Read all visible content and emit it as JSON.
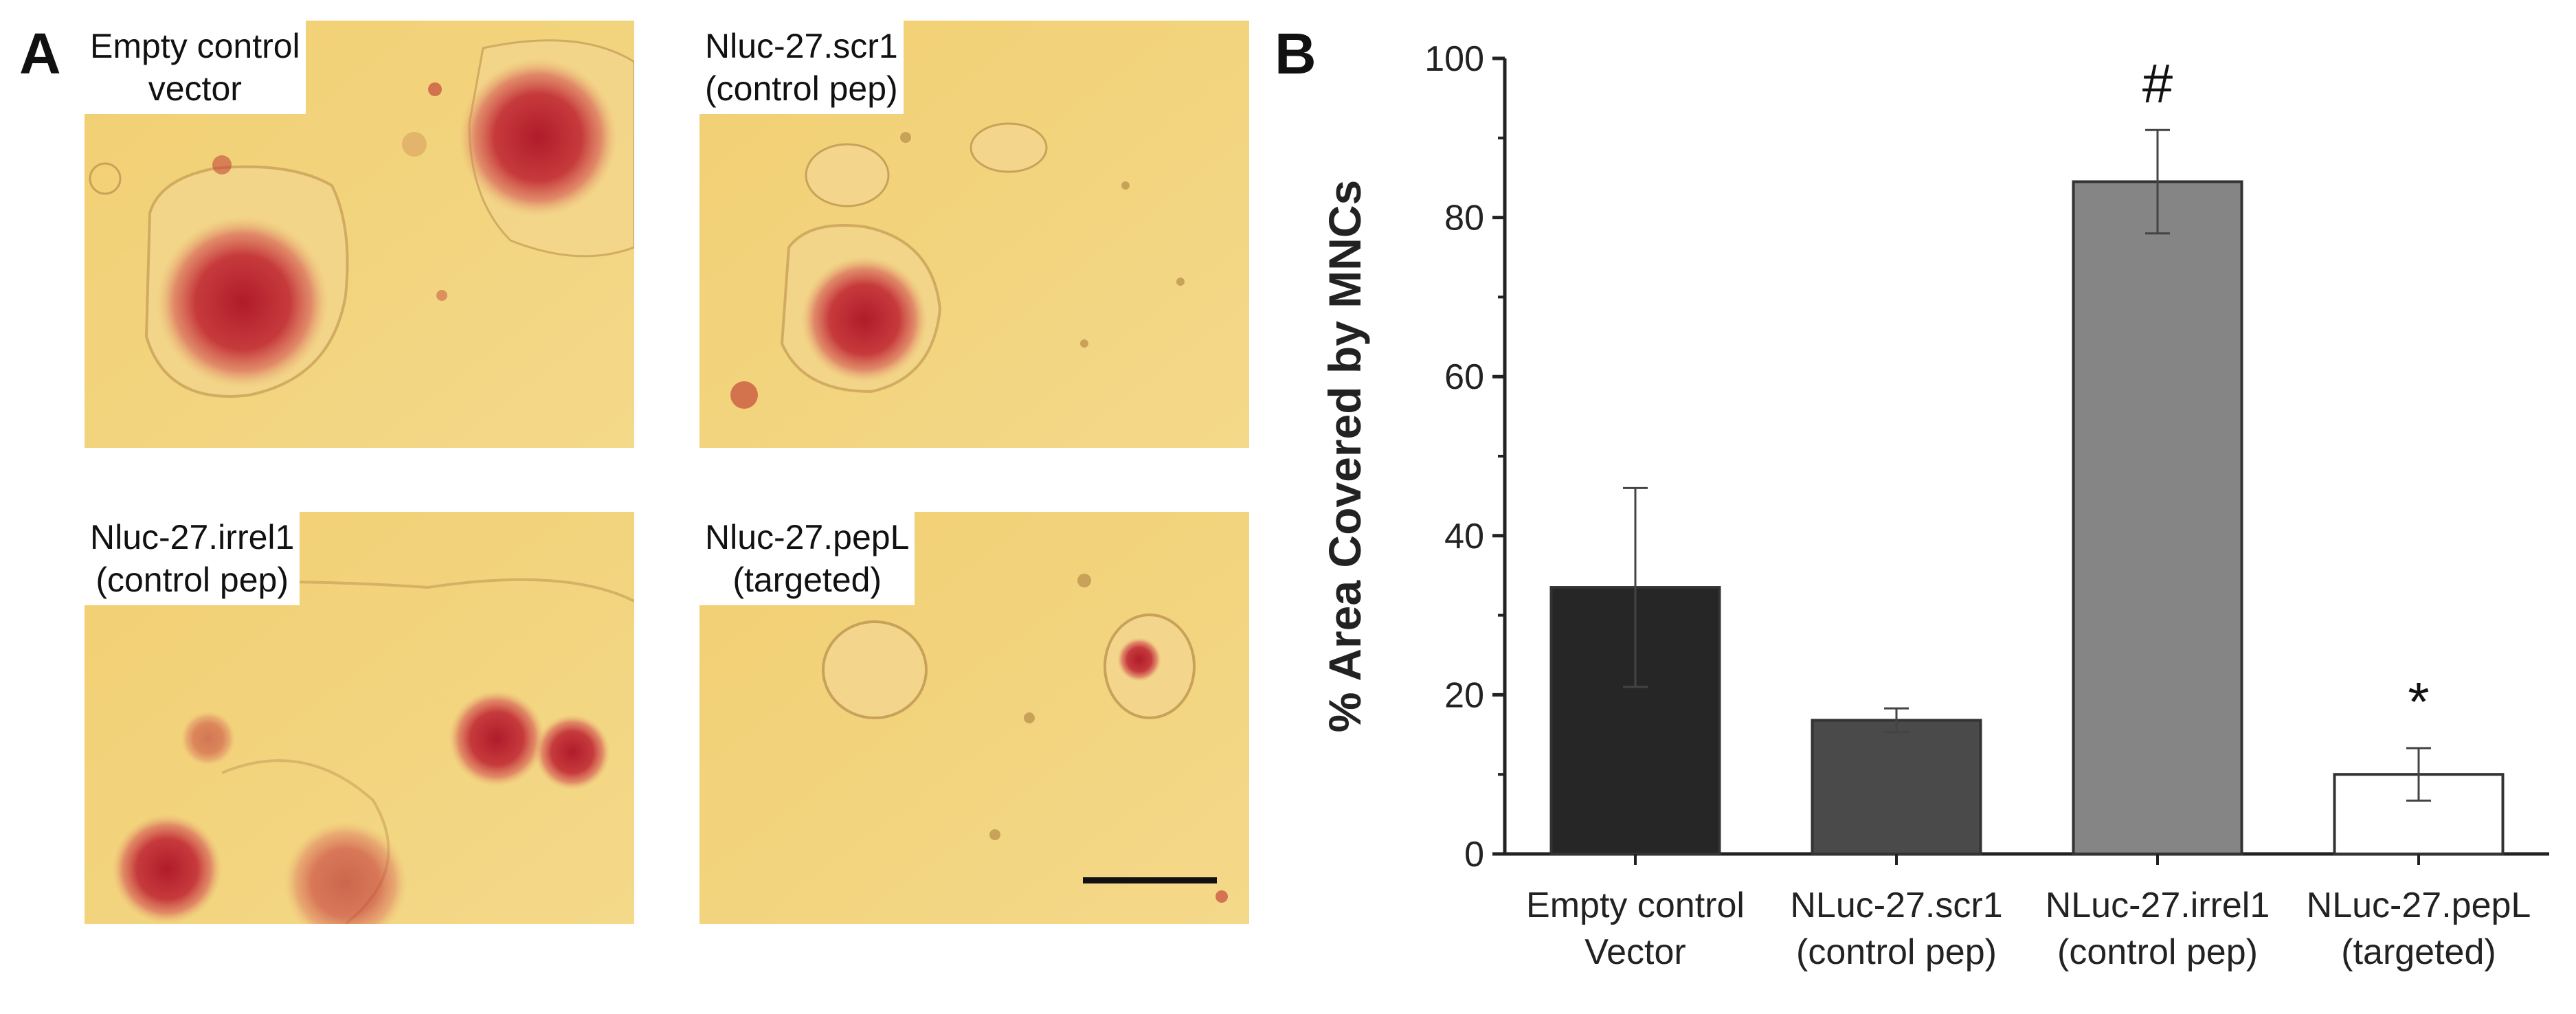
{
  "panel_a": {
    "letter": "A",
    "images": [
      {
        "label_line1": "Empty control",
        "label_line2": "vector"
      },
      {
        "label_line1": "Nluc-27.scr1",
        "label_line2": "(control pep)"
      },
      {
        "label_line1": "Nluc-27.irrel1",
        "label_line2": "(control pep)"
      },
      {
        "label_line1": "Nluc-27.pepL",
        "label_line2": "(targeted)"
      }
    ]
  },
  "panel_b": {
    "letter": "B"
  },
  "chart_data": {
    "type": "bar",
    "ylabel": "% Area Covered by MNCs",
    "xlabel": "",
    "ylim": [
      0,
      100
    ],
    "yticks": [
      0,
      20,
      40,
      60,
      80,
      100
    ],
    "grid": false,
    "categories": [
      {
        "line1": "Empty control",
        "line2": "Vector"
      },
      {
        "line1": "NLuc-27.scr1",
        "line2": "(control pep)"
      },
      {
        "line1": "NLuc-27.irrel1",
        "line2": "(control pep)"
      },
      {
        "line1": "NLuc-27.pepL",
        "line2": "(targeted)"
      }
    ],
    "values": [
      33.5,
      16.8,
      84.5,
      10
    ],
    "errors": [
      12.5,
      1.5,
      6.5,
      3.3
    ],
    "bar_colors": [
      "#262626",
      "#4a4a4a",
      "#858585",
      "#ffffff"
    ],
    "annotations": [
      "",
      "",
      "#",
      "*"
    ]
  }
}
